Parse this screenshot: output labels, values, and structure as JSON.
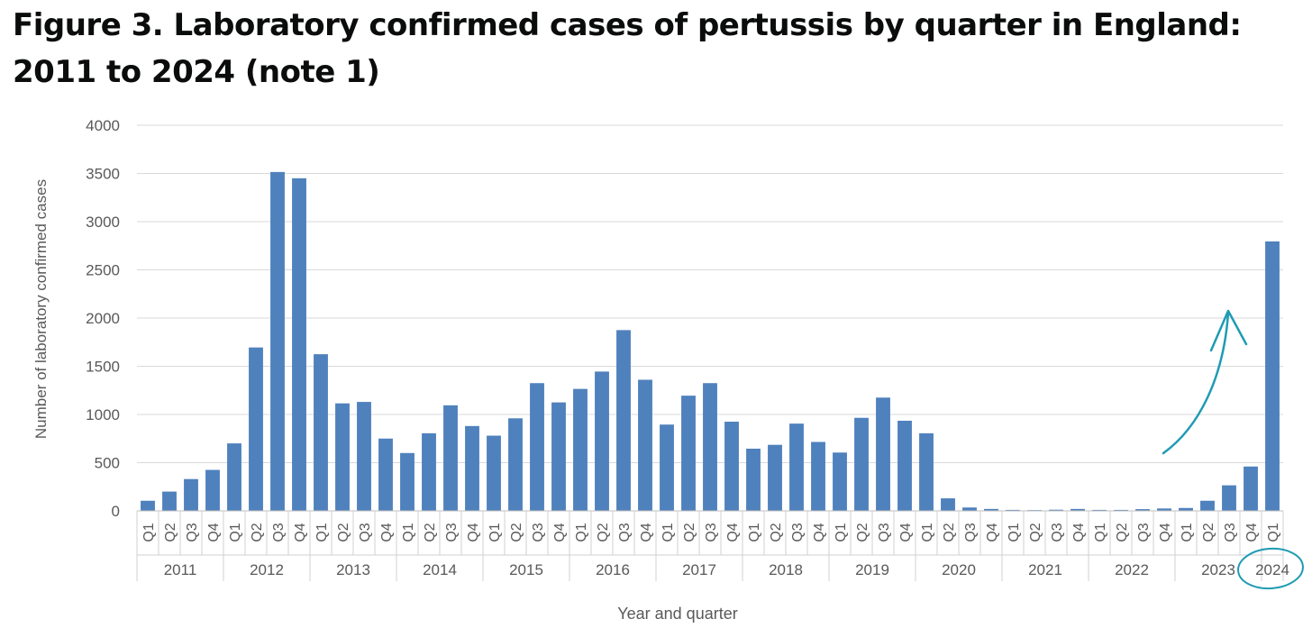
{
  "title": "Figure 3. Laboratory confirmed cases of pertussis by quarter in England: 2011 to 2024 (note 1)",
  "chart_data": {
    "type": "bar",
    "title": "Figure 3. Laboratory confirmed cases of pertussis by quarter in England: 2011 to 2024 (note 1)",
    "xlabel": "Year and quarter",
    "ylabel": "Number of laboratory confirmed cases",
    "ylim": [
      0,
      4000
    ],
    "yticks": [
      0,
      500,
      1000,
      1500,
      2000,
      2500,
      3000,
      3500,
      4000
    ],
    "grid": true,
    "bar_color": "#4f81bd",
    "annotation_color": "#1f9bb3",
    "years": [
      "2011",
      "2012",
      "2013",
      "2014",
      "2015",
      "2016",
      "2017",
      "2018",
      "2019",
      "2020",
      "2021",
      "2022",
      "2023",
      "2024"
    ],
    "quarter_labels": [
      "Q1",
      "Q2",
      "Q3",
      "Q4"
    ],
    "categories": [
      "2011 Q1",
      "2011 Q2",
      "2011 Q3",
      "2011 Q4",
      "2012 Q1",
      "2012 Q2",
      "2012 Q3",
      "2012 Q4",
      "2013 Q1",
      "2013 Q2",
      "2013 Q3",
      "2013 Q4",
      "2014 Q1",
      "2014 Q2",
      "2014 Q3",
      "2014 Q4",
      "2015 Q1",
      "2015 Q2",
      "2015 Q3",
      "2015 Q4",
      "2016 Q1",
      "2016 Q2",
      "2016 Q3",
      "2016 Q4",
      "2017 Q1",
      "2017 Q2",
      "2017 Q3",
      "2017 Q4",
      "2018 Q1",
      "2018 Q2",
      "2018 Q3",
      "2018 Q4",
      "2019 Q1",
      "2019 Q2",
      "2019 Q3",
      "2019 Q4",
      "2020 Q1",
      "2020 Q2",
      "2020 Q3",
      "2020 Q4",
      "2021 Q1",
      "2021 Q2",
      "2021 Q3",
      "2021 Q4",
      "2022 Q1",
      "2022 Q2",
      "2022 Q3",
      "2022 Q4",
      "2023 Q1",
      "2023 Q2",
      "2023 Q3",
      "2023 Q4",
      "2024 Q1"
    ],
    "values": [
      105,
      200,
      330,
      425,
      700,
      1695,
      3515,
      3450,
      1625,
      1115,
      1130,
      750,
      600,
      805,
      1095,
      880,
      780,
      960,
      1325,
      1125,
      1265,
      1445,
      1875,
      1360,
      895,
      1195,
      1325,
      925,
      645,
      685,
      905,
      715,
      605,
      965,
      1175,
      935,
      805,
      130,
      35,
      20,
      10,
      8,
      12,
      20,
      10,
      10,
      18,
      25,
      30,
      105,
      265,
      460,
      2795
    ],
    "annotations": [
      {
        "type": "arrow",
        "description": "hand-drawn upward arrow toward 2024 Q1"
      },
      {
        "type": "circle",
        "target": "2024"
      }
    ]
  }
}
